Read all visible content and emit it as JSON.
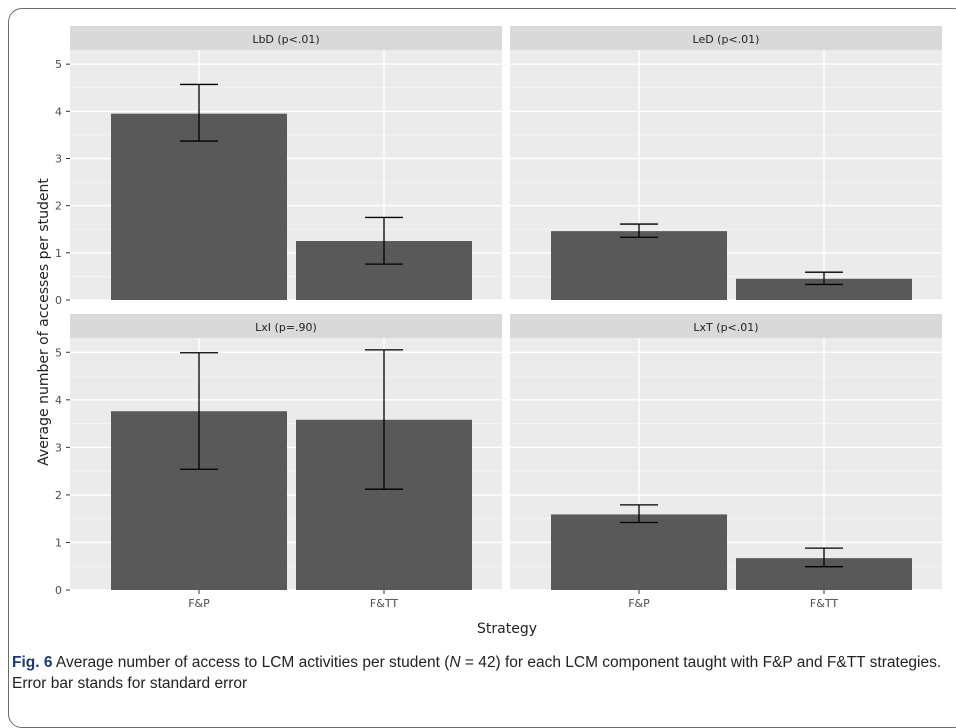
{
  "chart_data": {
    "type": "bar",
    "xlabel": "Strategy",
    "ylabel": "Average number of accesses per student",
    "categories": [
      "F&P",
      "F&TT"
    ],
    "ylim": [
      0,
      5.3
    ],
    "yticks": [
      0,
      1,
      2,
      3,
      4,
      5
    ],
    "grid": true,
    "bar_color": "#595959",
    "panel_bg": "#ebebeb",
    "strip_bg": "#d9d9d9",
    "panels": [
      {
        "title": "LbD (p<.01)",
        "values": [
          3.95,
          1.25
        ],
        "errors": [
          [
            3.37,
            4.57
          ],
          [
            0.76,
            1.75
          ]
        ]
      },
      {
        "title": "LeD (p<.01)",
        "values": [
          1.46,
          0.45
        ],
        "errors": [
          [
            1.33,
            1.61
          ],
          [
            0.33,
            0.59
          ]
        ]
      },
      {
        "title": "LxI (p=.90)",
        "values": [
          3.76,
          3.58
        ],
        "errors": [
          [
            2.54,
            4.99
          ],
          [
            2.12,
            5.05
          ]
        ]
      },
      {
        "title": "LxT (p<.01)",
        "values": [
          1.59,
          0.67
        ],
        "errors": [
          [
            1.42,
            1.79
          ],
          [
            0.49,
            0.88
          ]
        ]
      }
    ]
  },
  "caption": {
    "label": "Fig. 6",
    "text_before_n": " Average number of access to LCM activities per student (",
    "n_symbol": "N",
    "text_after_n": " = 42) for each LCM component taught with F&P and F&TT strategies. Error bar stands for standard error"
  }
}
